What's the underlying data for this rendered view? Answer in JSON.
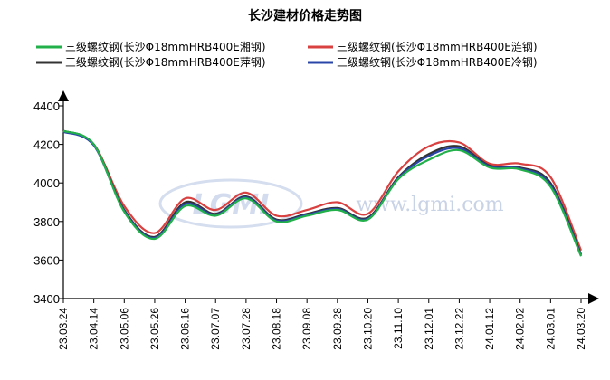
{
  "chart_data": {
    "type": "line",
    "title": "长沙建材价格走势图",
    "watermark": {
      "logo": "LGMI",
      "text": "www.lgmi.com"
    },
    "ylim": [
      3400,
      4400
    ],
    "yticks": [
      3400,
      3600,
      3800,
      4000,
      4200,
      4400
    ],
    "grid": false,
    "legend_position": "top",
    "x": [
      "23.03.24",
      "23.04.14",
      "23.05.06",
      "23.05.26",
      "23.06.16",
      "23.07.07",
      "23.07.28",
      "23.08.18",
      "23.09.08",
      "23.09.28",
      "23.10.20",
      "23.11.10",
      "23.12.01",
      "23.12.22",
      "24.01.12",
      "24.02.02",
      "24.03.01",
      "24.03.20"
    ],
    "series": [
      {
        "name": "三级螺纹钢(长沙Φ18mmHRB400E湘钢)",
        "color": "#22b04a",
        "values": [
          4270,
          4200,
          3850,
          3710,
          3880,
          3830,
          3920,
          3800,
          3830,
          3860,
          3810,
          4020,
          4120,
          4170,
          4080,
          4070,
          3980,
          3620
        ]
      },
      {
        "name": "三级螺纹钢(长沙Φ18mmHRB400E涟钢)",
        "color": "#d94040",
        "values": [
          4270,
          4200,
          3880,
          3740,
          3920,
          3860,
          3950,
          3830,
          3860,
          3900,
          3840,
          4060,
          4190,
          4210,
          4100,
          4100,
          4030,
          3650
        ]
      },
      {
        "name": "三级螺纹钢(长沙Φ18mmHRB400E萍钢)",
        "color": "#333333",
        "values": [
          4270,
          4200,
          3860,
          3720,
          3900,
          3840,
          3930,
          3810,
          3840,
          3870,
          3820,
          4030,
          4150,
          4190,
          4090,
          4080,
          4000,
          3630
        ]
      },
      {
        "name": "三级螺纹钢(长沙Φ18mmHRB400E冷钢)",
        "color": "#2a45a8",
        "values": [
          4265,
          4195,
          3855,
          3715,
          3890,
          3835,
          3925,
          3805,
          3835,
          3865,
          3815,
          4025,
          4140,
          4180,
          4085,
          4075,
          3990,
          3625
        ]
      }
    ]
  }
}
